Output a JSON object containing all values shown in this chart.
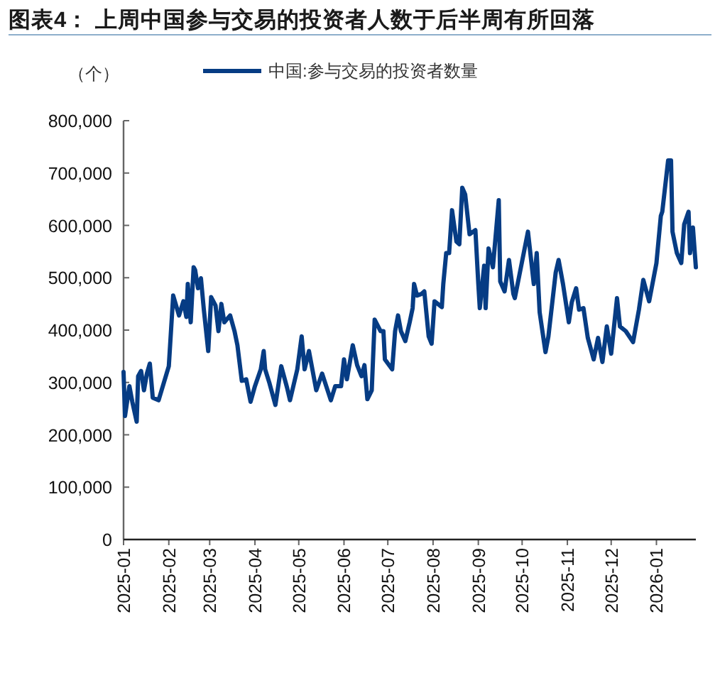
{
  "chart_data": {
    "type": "line",
    "title": "图表4：  上周中国参与交易的投资者人数于后半周有所回落",
    "ylabel": "（个）",
    "legend": "top",
    "grid": false,
    "marker": "none",
    "line_style": "solid",
    "xlim": [
      "2025-01-01",
      "2026-01-28"
    ],
    "ylim": [
      0,
      800000
    ],
    "xticks": [
      "2025-01",
      "2025-02",
      "2025-03",
      "2025-04",
      "2025-05",
      "2025-06",
      "2025-07",
      "2025-08",
      "2025-09",
      "2025-10",
      "2025-11",
      "2025-12",
      "2026-01"
    ],
    "yticks": [
      {
        "value": 0,
        "label": "0"
      },
      {
        "value": 100000,
        "label": "100,000"
      },
      {
        "value": 200000,
        "label": "200,000"
      },
      {
        "value": 300000,
        "label": "300,000"
      },
      {
        "value": 400000,
        "label": "400,000"
      },
      {
        "value": 500000,
        "label": "500,000"
      },
      {
        "value": 600000,
        "label": "600,000"
      },
      {
        "value": 700000,
        "label": "700,000"
      },
      {
        "value": 800000,
        "label": "800,000"
      }
    ],
    "x": [
      "2025-01-01",
      "2025-01-02",
      "2025-01-05",
      "2025-01-07",
      "2025-01-10",
      "2025-01-11",
      "2025-01-13",
      "2025-01-15",
      "2025-01-17",
      "2025-01-19",
      "2025-01-21",
      "2025-01-25",
      "2025-02-01",
      "2025-02-04",
      "2025-02-08",
      "2025-02-11",
      "2025-02-13",
      "2025-02-14",
      "2025-02-16",
      "2025-02-18",
      "2025-02-19",
      "2025-02-21",
      "2025-02-23",
      "2025-02-25",
      "2025-02-28",
      "2025-03-02",
      "2025-03-05",
      "2025-03-07",
      "2025-03-09",
      "2025-03-11",
      "2025-03-15",
      "2025-03-18",
      "2025-03-20",
      "2025-03-23",
      "2025-03-26",
      "2025-03-29",
      "2025-04-01",
      "2025-04-05",
      "2025-04-07",
      "2025-04-08",
      "2025-04-11",
      "2025-04-15",
      "2025-04-19",
      "2025-04-23",
      "2025-04-25",
      "2025-04-30",
      "2025-05-03",
      "2025-05-05",
      "2025-05-08",
      "2025-05-13",
      "2025-05-17",
      "2025-05-23",
      "2025-05-26",
      "2025-05-30",
      "2025-06-01",
      "2025-06-03",
      "2025-06-07",
      "2025-06-10",
      "2025-06-13",
      "2025-06-15",
      "2025-06-17",
      "2025-06-20",
      "2025-06-22",
      "2025-06-26",
      "2025-06-28",
      "2025-06-29",
      "2025-07-04",
      "2025-07-06",
      "2025-07-08",
      "2025-07-10",
      "2025-07-13",
      "2025-07-16",
      "2025-07-18",
      "2025-07-19",
      "2025-07-21",
      "2025-07-24",
      "2025-07-26",
      "2025-07-29",
      "2025-07-31",
      "2025-08-02",
      "2025-08-07",
      "2025-08-08",
      "2025-08-10",
      "2025-08-12",
      "2025-08-14",
      "2025-08-17",
      "2025-08-19",
      "2025-08-21",
      "2025-08-23",
      "2025-08-26",
      "2025-08-30",
      "2025-09-01",
      "2025-09-02",
      "2025-09-05",
      "2025-09-06",
      "2025-09-08",
      "2025-09-11",
      "2025-09-15",
      "2025-09-16",
      "2025-09-19",
      "2025-09-22",
      "2025-09-25",
      "2025-09-26",
      "2025-10-05",
      "2025-10-09",
      "2025-10-11",
      "2025-10-13",
      "2025-10-17",
      "2025-10-19",
      "2025-10-24",
      "2025-10-26",
      "2025-10-29",
      "2025-11-02",
      "2025-11-04",
      "2025-11-07",
      "2025-11-09",
      "2025-11-12",
      "2025-11-15",
      "2025-11-19",
      "2025-11-22",
      "2025-11-25",
      "2025-11-28",
      "2025-12-01",
      "2025-12-05",
      "2025-12-07",
      "2025-12-11",
      "2025-12-16",
      "2025-12-20",
      "2025-12-23",
      "2025-12-27",
      "2026-01-01",
      "2026-01-04",
      "2026-01-05",
      "2026-01-09",
      "2026-01-11",
      "2026-01-12",
      "2026-01-15",
      "2026-01-18",
      "2026-01-20",
      "2026-01-23",
      "2026-01-24",
      "2026-01-26",
      "2026-01-28"
    ],
    "series": [
      {
        "name": "中国:参与交易的投资者数量",
        "color": "#063c84",
        "values": [
          320000,
          236000,
          293000,
          263000,
          225000,
          312000,
          322000,
          285000,
          317000,
          336000,
          271000,
          266000,
          331000,
          466000,
          428000,
          455000,
          425000,
          488000,
          415000,
          520000,
          515000,
          480000,
          499000,
          439000,
          360000,
          463000,
          447000,
          398000,
          450000,
          415000,
          428000,
          398000,
          371000,
          303000,
          306000,
          263000,
          293000,
          325000,
          360000,
          325000,
          298000,
          257000,
          331000,
          290000,
          266000,
          325000,
          388000,
          325000,
          360000,
          285000,
          317000,
          266000,
          293000,
          293000,
          344000,
          306000,
          371000,
          333000,
          312000,
          333000,
          268000,
          285000,
          420000,
          398000,
          398000,
          344000,
          325000,
          398000,
          428000,
          398000,
          379000,
          415000,
          442000,
          488000,
          466000,
          469000,
          474000,
          388000,
          374000,
          455000,
          444000,
          488000,
          547000,
          547000,
          629000,
          569000,
          564000,
          672000,
          659000,
          583000,
          591000,
          488000,
          442000,
          523000,
          442000,
          556000,
          520000,
          648000,
          493000,
          474000,
          534000,
          469000,
          461000,
          588000,
          488000,
          547000,
          434000,
          358000,
          388000,
          510000,
          534000,
          488000,
          415000,
          453000,
          480000,
          439000,
          442000,
          385000,
          344000,
          385000,
          339000,
          407000,
          355000,
          461000,
          407000,
          398000,
          377000,
          439000,
          496000,
          455000,
          528000,
          618000,
          626000,
          724000,
          724000,
          588000,
          547000,
          528000,
          602000,
          626000,
          547000,
          596000,
          520000
        ]
      }
    ]
  }
}
